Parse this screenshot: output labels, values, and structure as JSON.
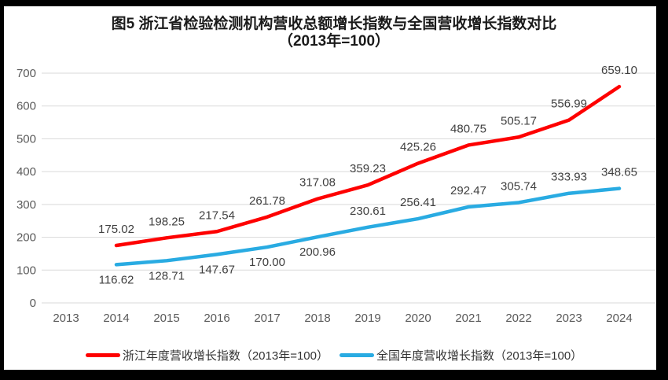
{
  "chart_data": {
    "type": "line",
    "title": "图5  浙江省检验检测机构营收总额增长指数与全国营收增长指数对比",
    "subtitle": "（2013年=100）",
    "categories": [
      "2013",
      "2014",
      "2015",
      "2016",
      "2017",
      "2018",
      "2019",
      "2020",
      "2021",
      "2022",
      "2023",
      "2024"
    ],
    "series": [
      {
        "name": "浙江年度营收增长指数（2013年=100）",
        "color": "#FE0000",
        "values": [
          null,
          175.02,
          198.25,
          217.54,
          261.78,
          317.08,
          359.23,
          425.26,
          480.75,
          505.17,
          556.99,
          659.1
        ],
        "labels": [
          null,
          "175.02",
          "198.25",
          "217.54",
          "261.78",
          "317.08",
          "359.23",
          "425.26",
          "480.75",
          "505.17",
          "556.99",
          "659.10"
        ],
        "label_positions": [
          null,
          "above",
          "above",
          "above",
          "above",
          "above",
          "above",
          "above",
          "above",
          "above",
          "above",
          "above"
        ]
      },
      {
        "name": "全国年度营收增长指数（2013年=100）",
        "color": "#29ABE2",
        "values": [
          null,
          116.62,
          128.71,
          147.67,
          170.0,
          200.96,
          230.61,
          256.41,
          292.47,
          305.74,
          333.93,
          348.65
        ],
        "labels": [
          null,
          "116.62",
          "128.71",
          "147.67",
          "170.00",
          "200.96",
          "230.61",
          "256.41",
          "292.47",
          "305.74",
          "333.93",
          "348.65"
        ],
        "label_positions": [
          null,
          "below",
          "below",
          "below",
          "below",
          "below",
          "above",
          "above",
          "above",
          "above",
          "above",
          "above"
        ]
      }
    ],
    "ylim": [
      0,
      700
    ],
    "yticks": [
      0,
      100,
      200,
      300,
      400,
      500,
      600,
      700
    ],
    "grid": true,
    "legend_position": "bottom",
    "gridline_color": "#D9D9D9",
    "axis_label_color": "#595959",
    "data_label_color": "#404040",
    "frame_color": "#000000",
    "background_color": "#FFFFFF"
  }
}
